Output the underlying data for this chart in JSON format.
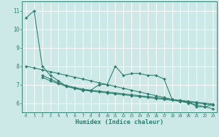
{
  "title": "",
  "xlabel": "Humidex (Indice chaleur)",
  "ylabel": "",
  "xlim": [
    -0.5,
    23.5
  ],
  "ylim": [
    5.5,
    11.5
  ],
  "yticks": [
    6,
    7,
    8,
    9,
    10,
    11
  ],
  "xticks": [
    0,
    1,
    2,
    3,
    4,
    5,
    6,
    7,
    8,
    9,
    10,
    11,
    12,
    13,
    14,
    15,
    16,
    17,
    18,
    19,
    20,
    21,
    22,
    23
  ],
  "background_color": "#cce9e7",
  "grid_color": "#ffffff",
  "line_color": "#2e7d6e",
  "lines": [
    {
      "x": [
        0,
        1,
        2,
        3,
        4,
        5,
        6,
        7,
        8,
        9,
        10,
        11,
        12,
        13,
        14,
        15,
        16,
        17,
        18,
        19,
        20,
        21,
        22,
        23
      ],
      "y": [
        10.6,
        11.0,
        8.0,
        7.5,
        7.2,
        6.9,
        6.8,
        6.7,
        6.7,
        7.0,
        7.0,
        8.0,
        7.5,
        7.6,
        7.6,
        7.5,
        7.5,
        7.3,
        6.2,
        6.1,
        6.1,
        5.8,
        5.8,
        5.9
      ]
    },
    {
      "x": [
        2,
        3,
        4,
        5,
        6,
        7,
        8,
        9,
        10,
        11,
        12,
        13,
        14,
        15,
        16,
        17,
        18,
        19,
        20,
        21,
        22,
        23
      ],
      "y": [
        7.5,
        7.3,
        7.1,
        6.95,
        6.85,
        6.75,
        6.7,
        6.65,
        6.6,
        6.55,
        6.5,
        6.45,
        6.4,
        6.35,
        6.3,
        6.25,
        6.2,
        6.15,
        6.1,
        6.05,
        6.0,
        5.95
      ]
    },
    {
      "x": [
        2,
        3,
        4,
        5,
        6,
        7,
        8,
        9,
        10,
        11,
        12,
        13,
        14,
        15,
        16,
        17,
        18,
        19,
        20,
        21,
        22,
        23
      ],
      "y": [
        7.4,
        7.2,
        7.05,
        6.9,
        6.8,
        6.7,
        6.65,
        6.6,
        6.55,
        6.5,
        6.45,
        6.4,
        6.35,
        6.3,
        6.25,
        6.2,
        6.15,
        6.1,
        6.05,
        6.0,
        5.95,
        5.9
      ]
    },
    {
      "x": [
        0,
        1,
        2,
        3,
        4,
        5,
        6,
        7,
        8,
        9,
        10,
        11,
        12,
        13,
        14,
        15,
        16,
        17,
        18,
        19,
        20,
        21,
        22,
        23
      ],
      "y": [
        8.0,
        7.9,
        7.8,
        7.7,
        7.6,
        7.5,
        7.4,
        7.3,
        7.2,
        7.1,
        7.0,
        6.9,
        6.8,
        6.7,
        6.6,
        6.5,
        6.4,
        6.3,
        6.2,
        6.1,
        6.0,
        5.9,
        5.8,
        5.7
      ]
    }
  ]
}
